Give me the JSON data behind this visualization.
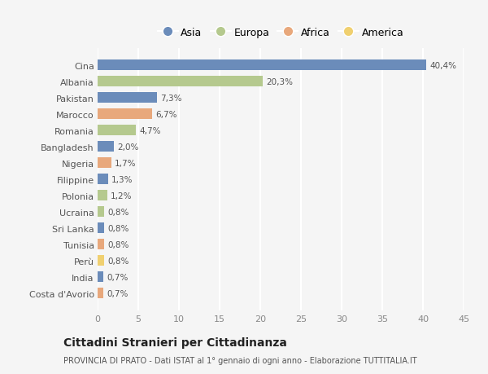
{
  "countries": [
    "Cina",
    "Albania",
    "Pakistan",
    "Marocco",
    "Romania",
    "Bangladesh",
    "Nigeria",
    "Filippine",
    "Polonia",
    "Ucraina",
    "Sri Lanka",
    "Tunisia",
    "Perù",
    "India",
    "Costa d'Avorio"
  ],
  "values": [
    40.4,
    20.3,
    7.3,
    6.7,
    4.7,
    2.0,
    1.7,
    1.3,
    1.2,
    0.8,
    0.8,
    0.8,
    0.8,
    0.7,
    0.7
  ],
  "labels": [
    "40,4%",
    "20,3%",
    "7,3%",
    "6,7%",
    "4,7%",
    "2,0%",
    "1,7%",
    "1,3%",
    "1,2%",
    "0,8%",
    "0,8%",
    "0,8%",
    "0,8%",
    "0,7%",
    "0,7%"
  ],
  "colors": [
    "#6b8cba",
    "#b5c98e",
    "#6b8cba",
    "#e8a87c",
    "#b5c98e",
    "#6b8cba",
    "#e8a87c",
    "#6b8cba",
    "#b5c98e",
    "#b5c98e",
    "#6b8cba",
    "#e8a87c",
    "#f0d070",
    "#6b8cba",
    "#e8a87c"
  ],
  "legend_labels": [
    "Asia",
    "Europa",
    "Africa",
    "America"
  ],
  "legend_colors": [
    "#6b8cba",
    "#b5c98e",
    "#e8a87c",
    "#f0d070"
  ],
  "title": "Cittadini Stranieri per Cittadinanza",
  "subtitle": "PROVINCIA DI PRATO - Dati ISTAT al 1° gennaio di ogni anno - Elaborazione TUTTITALIA.IT",
  "xlim": [
    0,
    45
  ],
  "xticks": [
    0,
    5,
    10,
    15,
    20,
    25,
    30,
    35,
    40,
    45
  ],
  "bg_color": "#f5f5f5",
  "bar_height": 0.65
}
